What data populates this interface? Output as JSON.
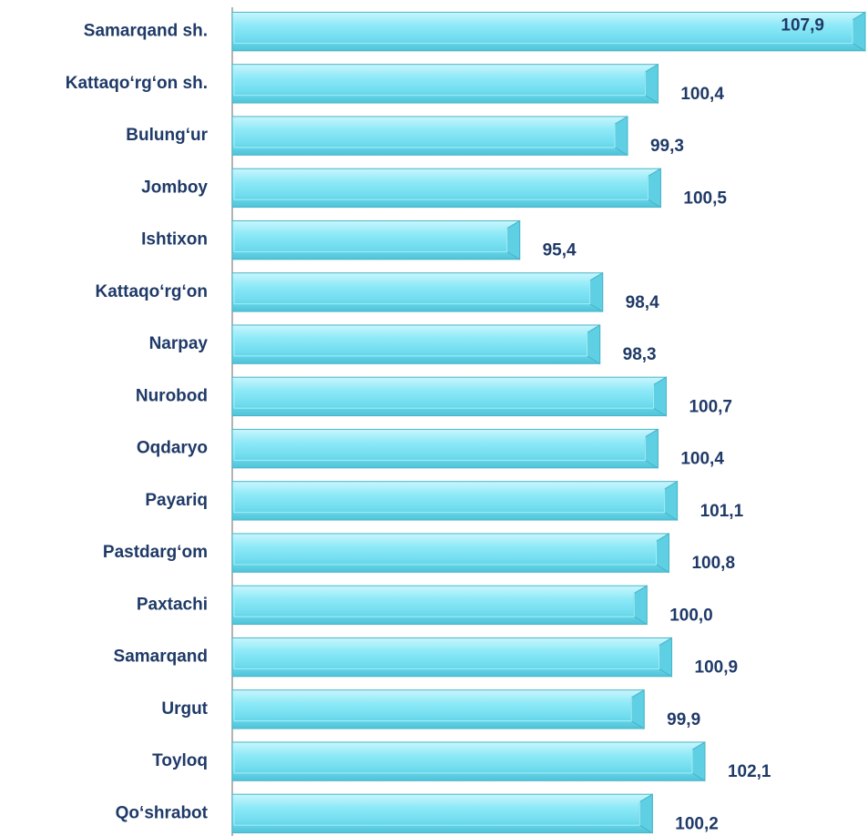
{
  "chart_data": {
    "type": "bar",
    "orientation": "horizontal",
    "categories": [
      "Samarqand sh.",
      "Kattaqo‘rg‘on sh.",
      "Bulung‘ur",
      "Jomboy",
      "Ishtixon",
      "Kattaqo‘rg‘on",
      "Narpay",
      "Nurobod",
      "Oqdaryo",
      "Payariq",
      "Pastdarg‘om",
      "Paxtachi",
      "Samarqand",
      "Urgut",
      "Toyloq",
      "Qo‘shrabot"
    ],
    "values": [
      107.9,
      100.4,
      99.3,
      100.5,
      95.4,
      98.4,
      98.3,
      100.7,
      100.4,
      101.1,
      100.8,
      100.0,
      100.9,
      99.9,
      102.1,
      100.2
    ],
    "value_labels": [
      "107,9",
      "100,4",
      "99,3",
      "100,5",
      "95,4",
      "98,4",
      "98,3",
      "100,7",
      "100,4",
      "101,1",
      "100,8",
      "100,0",
      "100,9",
      "99,9",
      "102,1",
      "100,2"
    ],
    "color": "#7fe6f5",
    "xlim": [
      85,
      108
    ]
  }
}
